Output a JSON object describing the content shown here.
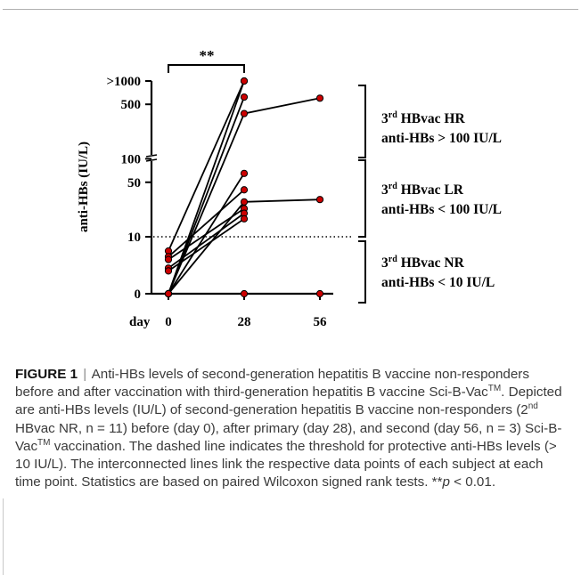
{
  "chart_data": {
    "type": "scatter",
    "ylabel": "anti-HBs (IU/L)",
    "x_axis_label": "day",
    "x_ticks": [
      "0",
      "28",
      "56"
    ],
    "y_ticks": [
      ">1000",
      "500",
      "100",
      "50",
      "10",
      "0"
    ],
    "y_scale": "log, broken axis",
    "threshold": {
      "value": 10,
      "style": "dotted"
    },
    "significance": {
      "label": "**",
      "between": [
        "0",
        "28"
      ]
    },
    "subjects": [
      [
        {
          "x": 0,
          "y": 0
        },
        {
          "x": 28,
          "y": 1000
        }
      ],
      [
        {
          "x": 0,
          "y": 0
        },
        {
          "x": 28,
          "y": 620
        }
      ],
      [
        {
          "x": 0,
          "y": 0
        },
        {
          "x": 28,
          "y": 380
        },
        {
          "x": 56,
          "y": 600
        }
      ],
      [
        {
          "x": 0,
          "y": 0
        },
        {
          "x": 28,
          "y": 65
        }
      ],
      [
        {
          "x": 0,
          "y": 0
        },
        {
          "x": 28,
          "y": 28
        },
        {
          "x": 56,
          "y": 30
        }
      ],
      [
        {
          "x": 0,
          "y": 7.5
        },
        {
          "x": 28,
          "y": 1000
        }
      ],
      [
        {
          "x": 0,
          "y": 6.5
        },
        {
          "x": 28,
          "y": 40
        }
      ],
      [
        {
          "x": 0,
          "y": 6
        },
        {
          "x": 28,
          "y": 23
        }
      ],
      [
        {
          "x": 0,
          "y": 4.5
        },
        {
          "x": 28,
          "y": 20
        }
      ],
      [
        {
          "x": 0,
          "y": 4
        },
        {
          "x": 28,
          "y": 17
        }
      ],
      [
        {
          "x": 0,
          "y": 0
        },
        {
          "x": 28,
          "y": 0
        },
        {
          "x": 56,
          "y": 0
        }
      ]
    ],
    "groups": [
      {
        "line1_main": "HBvac HR",
        "line2": "anti-HBs > 100 IU/L"
      },
      {
        "line1_main": "HBvac LR",
        "line2": "anti-HBs < 100 IU/L"
      },
      {
        "line1_main": "HBvac NR",
        "line2": "anti-HBs < 10 IU/L"
      }
    ],
    "group_prefix": "3",
    "group_prefix_sup": "rd",
    "colors": {
      "point": "#cc0000",
      "line": "#000000"
    }
  },
  "caption": {
    "fig_label": "FIGURE 1",
    "separator": "|",
    "t1": "Anti-HBs levels of second-generation hepatitis B vaccine non-responders before and after vaccination with third-generation hepatitis B vaccine Sci-B-Vac",
    "tm1": "TM",
    "t2": ". Depicted are anti-HBs levels (IU/L) of second-generation hepatitis B vaccine non-responders (2",
    "nd": "nd",
    "t3": " HBvac NR, n = 11) before (day 0), after primary (day 28), and second (day 56, n = 3) Sci-B-Vac",
    "tm2": "TM",
    "t4": " vaccination. The dashed line indicates the threshold for protective anti-HBs levels (> 10 IU/L). The interconnected lines link the respective data points of each subject at each time point. Statistics are based on paired Wilcoxon signed rank tests. **",
    "p": "p",
    "t5": " < 0.01."
  }
}
